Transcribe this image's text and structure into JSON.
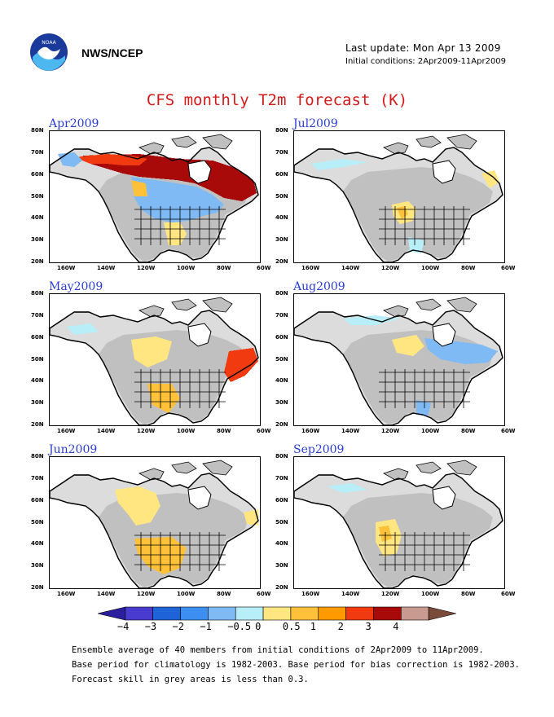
{
  "header": {
    "agency": "NWS/NCEP",
    "last_update": "Last update: Mon Apr 13 2009",
    "initial_conditions": "Initial conditions: 2Apr2009-11Apr2009",
    "logo_text": "NOAA"
  },
  "title": "CFS monthly T2m forecast (K)",
  "panels": [
    {
      "label": "Apr2009"
    },
    {
      "label": "Jul2009"
    },
    {
      "label": "May2009"
    },
    {
      "label": "Aug2009"
    },
    {
      "label": "Jun2009"
    },
    {
      "label": "Sep2009"
    }
  ],
  "axes": {
    "lat_labels": [
      "80N",
      "70N",
      "60N",
      "50N",
      "40N",
      "30N",
      "20N"
    ],
    "lon_labels": [
      "160W",
      "140W",
      "120W",
      "100W",
      "80W",
      "60W"
    ]
  },
  "colors": {
    "grey": "#c0c0c0",
    "land": "#ffffff",
    "ocean": "#ffffff"
  },
  "legend": {
    "labels": [
      "−4",
      "−3",
      "−2",
      "−1",
      "−0.5",
      "0",
      "0.5",
      "1",
      "2",
      "3",
      "4"
    ],
    "colors": [
      "#2b1f9e",
      "#4a3bd0",
      "#1e63d8",
      "#3c8ff0",
      "#7fbaf5",
      "#b8eef8",
      "#ffe680",
      "#ffc13a",
      "#ff9a00",
      "#f23a10",
      "#a80a0a",
      "#c89a90",
      "#7a4a3a"
    ]
  },
  "footer": [
    "Ensemble average of 40 members from initial conditions of 2Apr2009 to 11Apr2009.",
    "Base period for climatology is 1982-2003. Base period for bias correction is 1982-2003.",
    "Forecast skill in grey areas is less than 0.3."
  ]
}
